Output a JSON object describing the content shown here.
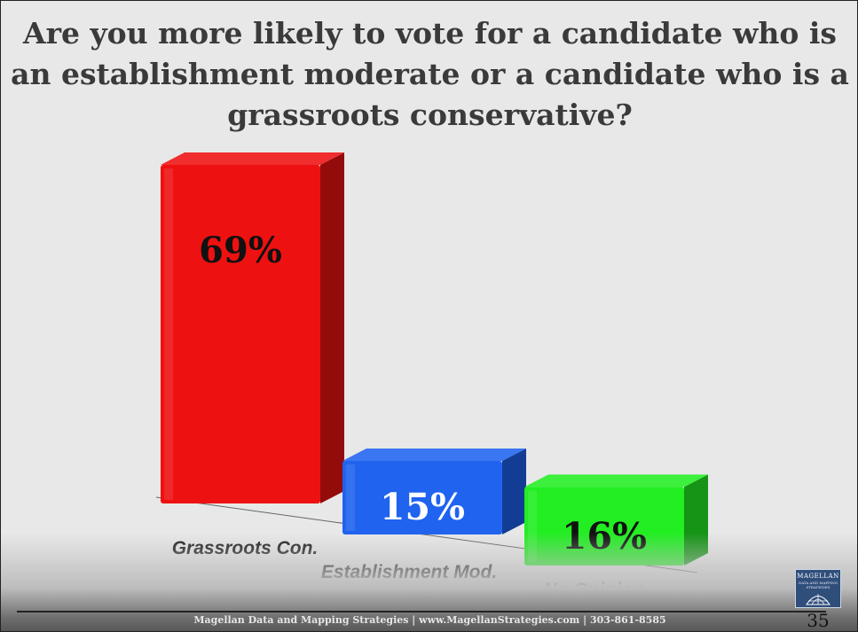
{
  "slide": {
    "page_number": "35",
    "footer": "Magellan Data and Mapping Strategies | www.MagellanStrategies.com | 303-861-8585",
    "logo": {
      "name": "MAGELLAN",
      "sub": "DATA AND MAPPING STRATEGIES"
    }
  },
  "chart_data": {
    "type": "bar",
    "title": "Are you more likely to vote for a candidate who is an establishment moderate or a candidate who is a grassroots conservative?",
    "categories": [
      "Grassroots Con.",
      "Establishment Mod.",
      "No Opinion"
    ],
    "values": [
      69,
      15,
      16
    ],
    "labels": [
      "69%",
      "15%",
      "16%"
    ],
    "colors": [
      "#ee1111",
      "#1f63ef",
      "#22ee22"
    ],
    "unit": "%",
    "ylim": [
      0,
      69
    ]
  }
}
